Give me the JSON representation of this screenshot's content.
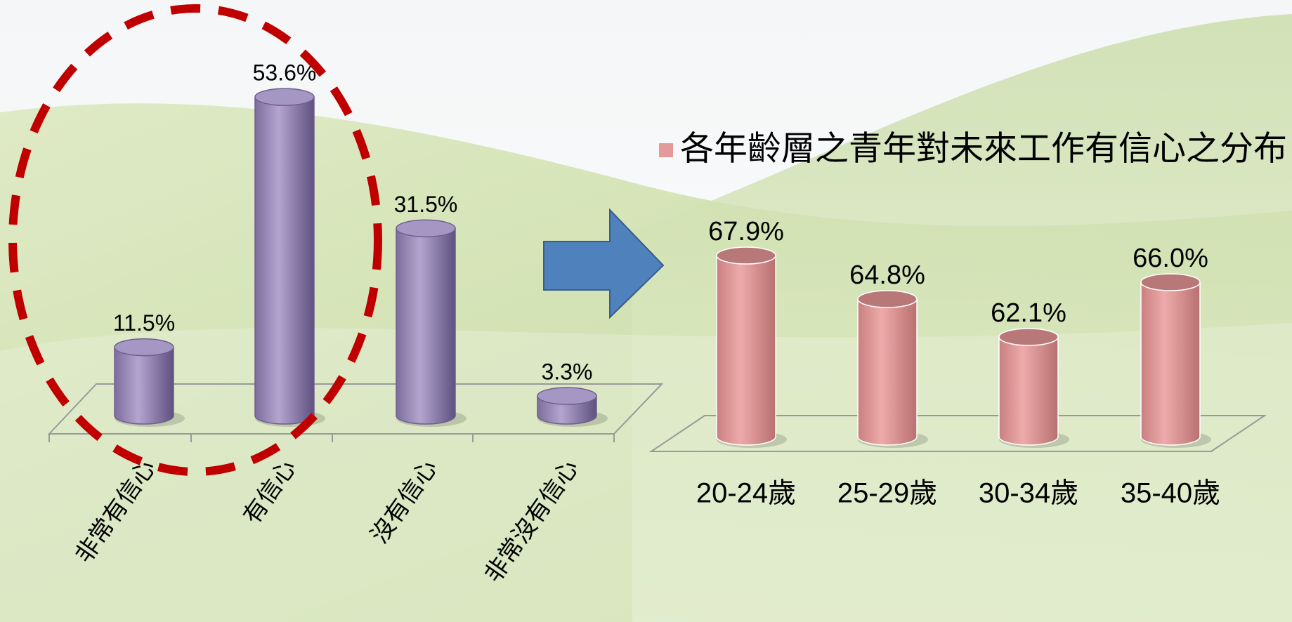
{
  "chart_data": [
    {
      "type": "bar",
      "categories": [
        "非常有信心",
        "有信心",
        "沒有信心",
        "非常沒有信心"
      ],
      "values": [
        11.5,
        53.6,
        31.5,
        3.3
      ],
      "value_labels": [
        "11.5%",
        "53.6%",
        "31.5%",
        "3.3%"
      ],
      "color": "#9a8ab8",
      "ylim": [
        0,
        60
      ]
    },
    {
      "type": "bar",
      "categories": [
        "20-24歲",
        "25-29歲",
        "30-34歲",
        "35-40歲"
      ],
      "series": [
        {
          "name": "各年齡層之青年對未來工作有信心之分布",
          "color": "#e49a9a",
          "values": [
            67.9,
            64.8,
            62.1,
            66.0
          ],
          "value_labels": [
            "67.9%",
            "64.8%",
            "62.1%",
            "66.0%"
          ]
        }
      ],
      "ylim": [
        55,
        70
      ]
    }
  ]
}
